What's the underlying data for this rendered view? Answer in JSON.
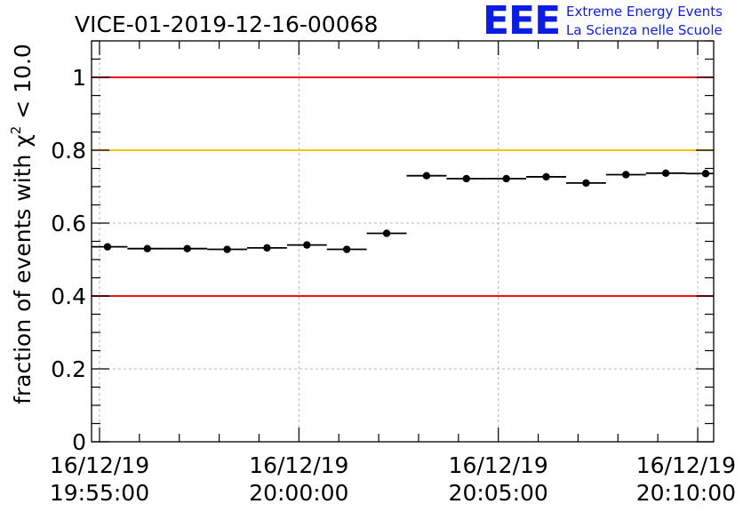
{
  "title": "VICE-01-2019-12-16-00068",
  "logo": {
    "letters": "EEE",
    "line1": "Extreme Energy Events",
    "line2": "La Scienza nelle Scuole",
    "color": "#0b1de0"
  },
  "chart_data": {
    "type": "scatter",
    "title": "VICE-01-2019-12-16-00068",
    "ylabel": "fraction of events with χ² < 10.0",
    "ylabel_parts": {
      "prefix": "fraction of events with ",
      "chi": "χ",
      "sup": "2",
      "suffix": " < 10.0"
    },
    "xlabel": "",
    "x_unit": "minutes after 16/12/19 19:55:00",
    "xlim": [
      -0.2,
      15.4
    ],
    "ylim": [
      0,
      1.1
    ],
    "grid": true,
    "x_ticks": [
      {
        "value": 0,
        "date": "16/12/19",
        "time": "19:55:00"
      },
      {
        "value": 5,
        "date": "16/12/19",
        "time": "20:00:00"
      },
      {
        "value": 10,
        "date": "16/12/19",
        "time": "20:05:00"
      },
      {
        "value": 15,
        "date": "16/12/19",
        "time": "20:10:00"
      }
    ],
    "y_ticks": [
      {
        "value": 0,
        "label": "0"
      },
      {
        "value": 0.2,
        "label": "0.2"
      },
      {
        "value": 0.4,
        "label": "0.4"
      },
      {
        "value": 0.6,
        "label": "0.6"
      },
      {
        "value": 0.8,
        "label": "0.8"
      },
      {
        "value": 1.0,
        "label": "1"
      }
    ],
    "reference_lines": [
      {
        "y": 1.0,
        "color": "#e8141a"
      },
      {
        "y": 0.8,
        "color": "#f7c300"
      },
      {
        "y": 0.4,
        "color": "#e8141a"
      }
    ],
    "series": [
      {
        "color": "#000000",
        "x_halfwidth": 0.5,
        "points": [
          {
            "x": 0.2,
            "y": 0.535
          },
          {
            "x": 1.2,
            "y": 0.53
          },
          {
            "x": 2.2,
            "y": 0.53
          },
          {
            "x": 3.2,
            "y": 0.528
          },
          {
            "x": 4.2,
            "y": 0.532
          },
          {
            "x": 5.2,
            "y": 0.54
          },
          {
            "x": 6.2,
            "y": 0.528
          },
          {
            "x": 7.2,
            "y": 0.572
          },
          {
            "x": 8.2,
            "y": 0.73
          },
          {
            "x": 9.2,
            "y": 0.722
          },
          {
            "x": 10.2,
            "y": 0.722
          },
          {
            "x": 11.2,
            "y": 0.727
          },
          {
            "x": 12.2,
            "y": 0.71
          },
          {
            "x": 13.2,
            "y": 0.733
          },
          {
            "x": 14.2,
            "y": 0.737
          },
          {
            "x": 15.2,
            "y": 0.736
          }
        ]
      }
    ]
  }
}
